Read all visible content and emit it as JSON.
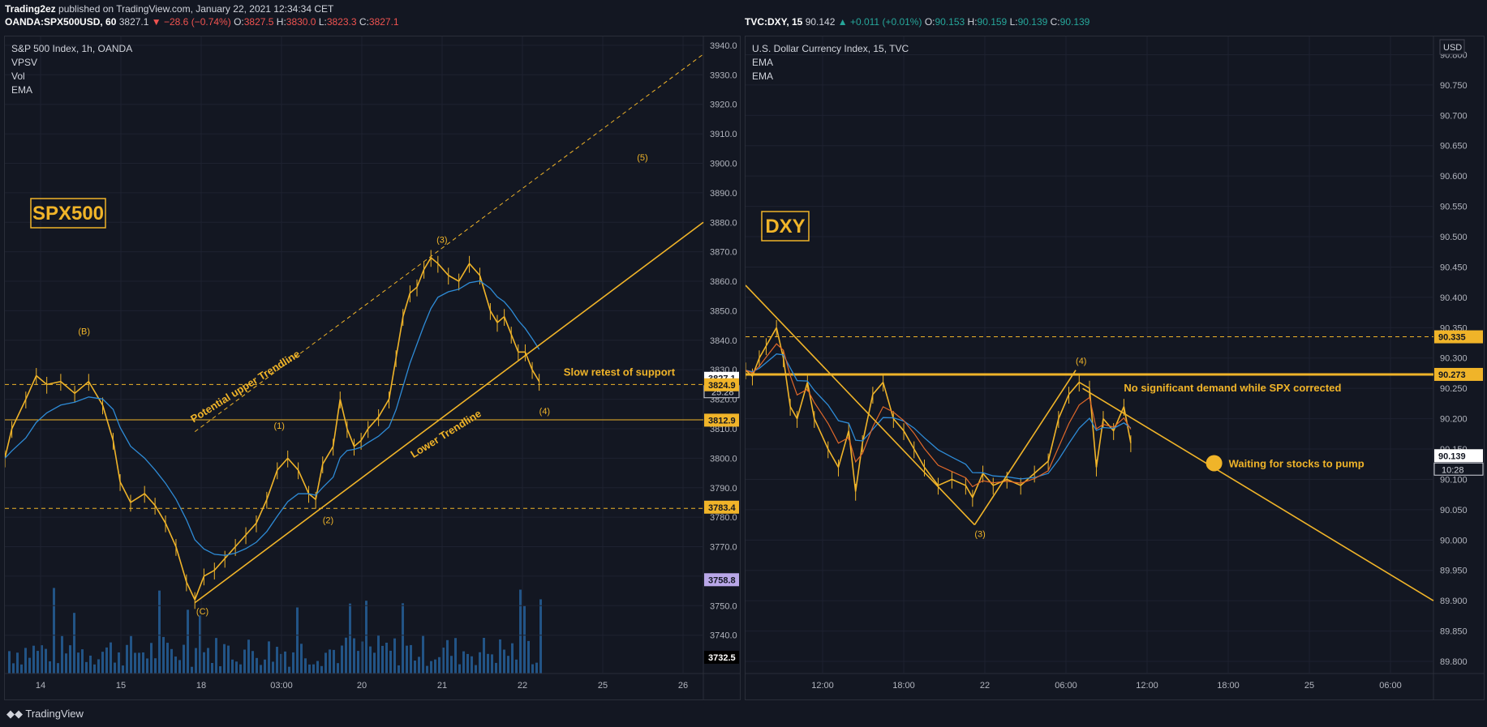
{
  "header": {
    "line1_user": "Trading2ez",
    "line1_rest": " published on TradingView.com, January 22, 2021 12:34:34 CET",
    "left": {
      "symbol": "OANDA:SPX500USD, 60",
      "price": "3827.1",
      "change": "▼ −28.6 (−0.74%)",
      "o_label": "O:",
      "o": "3827.5",
      "h_label": "H:",
      "h": "3830.0",
      "l_label": "L:",
      "l": "3823.3",
      "c_label": "C:",
      "c": "3827.1"
    },
    "right": {
      "symbol": "TVC:DXY, 15",
      "price": "90.142",
      "change": "▲ +0.011 (+0.01%)",
      "o_label": "O:",
      "o": "90.153",
      "h_label": "H:",
      "h": "90.159",
      "l_label": "L:",
      "l": "90.139",
      "c_label": "C:",
      "c": "90.139"
    }
  },
  "footer": {
    "logo": "TradingView"
  },
  "colors": {
    "bg": "#131722",
    "gold": "#f0b429",
    "ema": "#2e8bd6",
    "ema2": "#e0682a",
    "grid": "#1e2230",
    "text": "#d1d4dc",
    "volume": "#2a6fb0"
  },
  "chart_data": [
    {
      "type": "candlestick",
      "title": "S&P 500 Index, 1h, OANDA",
      "indicators": [
        "VPSV",
        "Vol",
        "EMA"
      ],
      "label_box": "SPX500",
      "ylim": [
        3727,
        3943
      ],
      "yticks": [
        3740,
        3750,
        3760,
        3770,
        3780,
        3790,
        3800,
        3810,
        3820,
        3830,
        3840,
        3850,
        3860,
        3870,
        3880,
        3890,
        3900,
        3910,
        3920,
        3930,
        3940
      ],
      "x_labels": [
        "14",
        "15",
        "18",
        "03:00",
        "20",
        "21",
        "22",
        "25",
        "26"
      ],
      "y_axis_tags": [
        {
          "value": 3827.1,
          "text": "3827.1"
        },
        {
          "value": 3824.9,
          "text": "3824.9"
        },
        {
          "value": 3812.9,
          "text": "3812.9"
        },
        {
          "value": 3783.4,
          "text": "3783.4"
        },
        {
          "value": 3758.8,
          "text": "3758.8"
        },
        {
          "value": 3732.5,
          "text": "3732.5"
        }
      ],
      "countdown": "25:28",
      "price_path": [
        [
          0.0,
          3800
        ],
        [
          0.01,
          3810
        ],
        [
          0.03,
          3820
        ],
        [
          0.045,
          3828
        ],
        [
          0.06,
          3825
        ],
        [
          0.08,
          3826
        ],
        [
          0.1,
          3822
        ],
        [
          0.12,
          3826
        ],
        [
          0.14,
          3818
        ],
        [
          0.155,
          3806
        ],
        [
          0.165,
          3792
        ],
        [
          0.18,
          3785
        ],
        [
          0.2,
          3788
        ],
        [
          0.215,
          3784
        ],
        [
          0.23,
          3778
        ],
        [
          0.245,
          3770
        ],
        [
          0.26,
          3758
        ],
        [
          0.272,
          3752
        ],
        [
          0.285,
          3760
        ],
        [
          0.3,
          3762
        ],
        [
          0.315,
          3766
        ],
        [
          0.33,
          3770
        ],
        [
          0.345,
          3774
        ],
        [
          0.36,
          3778
        ],
        [
          0.375,
          3786
        ],
        [
          0.39,
          3796
        ],
        [
          0.405,
          3800
        ],
        [
          0.42,
          3796
        ],
        [
          0.435,
          3788
        ],
        [
          0.445,
          3786
        ],
        [
          0.455,
          3798
        ],
        [
          0.47,
          3804
        ],
        [
          0.48,
          3820
        ],
        [
          0.49,
          3810
        ],
        [
          0.5,
          3804
        ],
        [
          0.51,
          3806
        ],
        [
          0.52,
          3810
        ],
        [
          0.535,
          3814
        ],
        [
          0.55,
          3820
        ],
        [
          0.56,
          3834
        ],
        [
          0.57,
          3848
        ],
        [
          0.58,
          3856
        ],
        [
          0.59,
          3858
        ],
        [
          0.6,
          3864
        ],
        [
          0.61,
          3868
        ],
        [
          0.62,
          3866
        ],
        [
          0.635,
          3862
        ],
        [
          0.65,
          3860
        ],
        [
          0.665,
          3866
        ],
        [
          0.68,
          3862
        ],
        [
          0.695,
          3850
        ],
        [
          0.705,
          3846
        ],
        [
          0.715,
          3848
        ],
        [
          0.725,
          3842
        ],
        [
          0.735,
          3836
        ],
        [
          0.745,
          3836
        ],
        [
          0.755,
          3830
        ],
        [
          0.765,
          3826
        ]
      ],
      "annotations": [
        {
          "text": "(B)",
          "x": 0.105,
          "y": 3842
        },
        {
          "text": "(C)",
          "x": 0.274,
          "y": 3747
        },
        {
          "text": "(1)",
          "x": 0.385,
          "y": 3810
        },
        {
          "text": "(2)",
          "x": 0.455,
          "y": 3778
        },
        {
          "text": "(3)",
          "x": 0.618,
          "y": 3873
        },
        {
          "text": "(4)",
          "x": 0.765,
          "y": 3815
        },
        {
          "text": "(5)",
          "x": 0.905,
          "y": 3901
        },
        {
          "text": "Slow retest of support",
          "x": 0.8,
          "y": 3828
        },
        {
          "text": "Potential upper Trendline",
          "x": 0.27,
          "y": 3812
        },
        {
          "text": "Lower Trendline",
          "x": 0.585,
          "y": 3800
        }
      ],
      "lines": [
        {
          "name": "lower-trendline",
          "from": [
            0.272,
            3751
          ],
          "to": [
            1.0,
            3880
          ]
        },
        {
          "name": "upper-trendline",
          "from": [
            0.272,
            3809
          ],
          "to": [
            1.0,
            3937
          ],
          "dashed": true
        }
      ],
      "horizontal_levels": [
        {
          "value": 3825,
          "dashed": true
        },
        {
          "value": 3813,
          "dashed": false
        },
        {
          "value": 3783,
          "dashed": true
        }
      ]
    },
    {
      "type": "candlestick",
      "title": "U.S. Dollar Currency Index, 15, TVC",
      "indicators": [
        "EMA",
        "EMA"
      ],
      "label_box": "DXY",
      "ylim": [
        89.78,
        90.83
      ],
      "yticks": [
        89.8,
        89.85,
        89.9,
        89.95,
        90.0,
        90.05,
        90.1,
        90.15,
        90.2,
        90.25,
        90.3,
        90.35,
        90.4,
        90.45,
        90.5,
        90.55,
        90.6,
        90.65,
        90.7,
        90.75,
        90.8
      ],
      "ytick_labels": [
        "89.800",
        "89.850",
        "89.900",
        "89.950",
        "90.000",
        "90.050",
        "90.100",
        "90.150",
        "90.200",
        "90.250",
        "90.300",
        "90.350",
        "90.400",
        "90.450",
        "90.500",
        "90.550",
        "90.600",
        "90.650",
        "90.700",
        "90.750",
        "90.800"
      ],
      "x_labels": [
        "12:00",
        "18:00",
        "22",
        "06:00",
        "12:00",
        "18:00",
        "25",
        "06:00"
      ],
      "y_axis_unit": "USD",
      "y_axis_tags": [
        {
          "value": 90.335,
          "text": "90.335"
        },
        {
          "value": 90.273,
          "text": "90.273"
        },
        {
          "value": 90.139,
          "text": "90.139"
        }
      ],
      "countdown": "10:28",
      "price_path": [
        [
          0.0,
          90.28
        ],
        [
          0.01,
          90.27
        ],
        [
          0.02,
          90.3
        ],
        [
          0.03,
          90.32
        ],
        [
          0.045,
          90.35
        ],
        [
          0.055,
          90.3
        ],
        [
          0.065,
          90.22
        ],
        [
          0.075,
          90.2
        ],
        [
          0.09,
          90.26
        ],
        [
          0.1,
          90.2
        ],
        [
          0.12,
          90.15
        ],
        [
          0.135,
          90.12
        ],
        [
          0.15,
          90.18
        ],
        [
          0.16,
          90.08
        ],
        [
          0.17,
          90.16
        ],
        [
          0.185,
          90.24
        ],
        [
          0.2,
          90.26
        ],
        [
          0.215,
          90.2
        ],
        [
          0.23,
          90.18
        ],
        [
          0.245,
          90.15
        ],
        [
          0.26,
          90.12
        ],
        [
          0.28,
          90.09
        ],
        [
          0.3,
          90.1
        ],
        [
          0.32,
          90.09
        ],
        [
          0.33,
          90.07
        ],
        [
          0.345,
          90.11
        ],
        [
          0.36,
          90.09
        ],
        [
          0.38,
          90.1
        ],
        [
          0.4,
          90.09
        ],
        [
          0.42,
          90.11
        ],
        [
          0.44,
          90.13
        ],
        [
          0.455,
          90.2
        ],
        [
          0.47,
          90.24
        ],
        [
          0.485,
          90.26
        ],
        [
          0.5,
          90.25
        ],
        [
          0.51,
          90.12
        ],
        [
          0.52,
          90.2
        ],
        [
          0.535,
          90.18
        ],
        [
          0.55,
          90.22
        ],
        [
          0.56,
          90.16
        ]
      ],
      "annotations": [
        {
          "text": "(3)",
          "x": 0.333,
          "y": 90.005
        },
        {
          "text": "(4)",
          "x": 0.48,
          "y": 90.29
        },
        {
          "text": "No significant demand while SPX corrected",
          "x": 0.55,
          "y": 90.245
        },
        {
          "text": "Waiting for stocks to pump",
          "x": 0.7,
          "y": 90.12
        }
      ],
      "lines": [
        {
          "name": "trend-down",
          "from": [
            0.49,
            90.25
          ],
          "to": [
            1.0,
            89.9
          ]
        },
        {
          "name": "wave-a",
          "from": [
            0.0,
            90.42
          ],
          "to": [
            0.333,
            90.025
          ]
        },
        {
          "name": "wave-b",
          "from": [
            0.333,
            90.025
          ],
          "to": [
            0.48,
            90.28
          ]
        }
      ],
      "horizontal_levels": [
        {
          "value": 90.335,
          "dashed": true
        },
        {
          "value": 90.273,
          "dashed": false
        }
      ]
    }
  ]
}
